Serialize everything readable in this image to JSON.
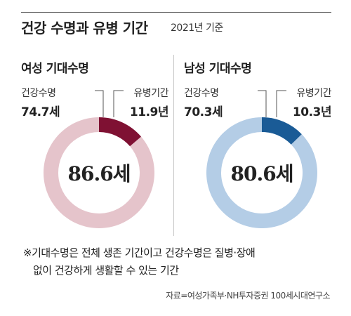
{
  "header": {
    "title": "건강 수명과 유병 기간",
    "subtitle": "2021년 기준"
  },
  "chart_data": [
    {
      "type": "pie",
      "title": "여성 기대수명",
      "center_label": "86.6세",
      "total": 86.6,
      "slices": [
        {
          "label": "건강수명",
          "value": 74.7,
          "value_text": "74.7세",
          "color": "#e5c4cb"
        },
        {
          "label": "유병기간",
          "value": 11.9,
          "value_text": "11.9년",
          "color": "#7f1133"
        }
      ],
      "accent_color": "#7f1133"
    },
    {
      "type": "pie",
      "title": "남성 기대수명",
      "center_label": "80.6세",
      "total": 80.6,
      "slices": [
        {
          "label": "건강수명",
          "value": 70.3,
          "value_text": "70.3세",
          "color": "#b4cde6"
        },
        {
          "label": "유병기간",
          "value": 10.3,
          "value_text": "10.3년",
          "color": "#1a5b96"
        }
      ],
      "accent_color": "#1a5b96"
    }
  ],
  "note": {
    "line1": "※기대수명은 전체 생존 기간이고 건강수명은 질병·장애",
    "line2": "없이 건강하게 생활할 수 있는 기간"
  },
  "source": "자료=여성가족부·NH투자증권 100세시대연구소"
}
